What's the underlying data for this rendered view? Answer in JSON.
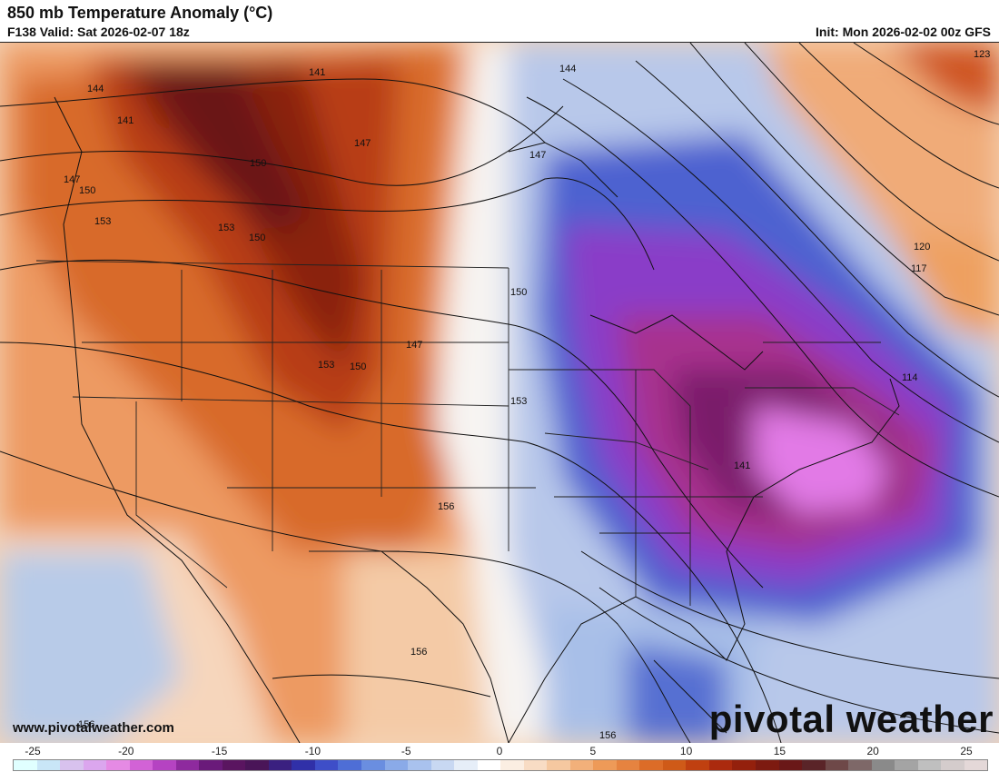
{
  "header": {
    "title": "850 mb Temperature Anomaly (°C)",
    "valid": "F138 Valid: Sat 2026-02-07 18z",
    "init": "Init: Mon 2026-02-02 00z GFS"
  },
  "footer": {
    "website": "www.pivotalweather.com",
    "logo": "pivotal weather"
  },
  "contour_labels": [
    "141",
    "144",
    "147",
    "150",
    "153",
    "156",
    "123",
    "120",
    "117",
    "114",
    "141",
    "144",
    "147",
    "150",
    "153",
    "156",
    "150",
    "153",
    "150",
    "147",
    "141",
    "147",
    "150",
    "153",
    "156",
    "156",
    "123"
  ],
  "colorbar": {
    "tick_labels": [
      "-25",
      "-20",
      "-15",
      "-10",
      "-5",
      "0",
      "5",
      "10",
      "15",
      "20",
      "25"
    ],
    "colors": [
      "#e0ffff",
      "#c9e6f7",
      "#d8c2ee",
      "#dba6ee",
      "#e58ae4",
      "#d262d6",
      "#b543c2",
      "#8e2a9e",
      "#6a1a7a",
      "#5a1560",
      "#4a1558",
      "#3a2080",
      "#3030a8",
      "#3e4ec8",
      "#4e6ed6",
      "#6a8ee0",
      "#8aaae8",
      "#a9c2ee",
      "#c8d8f2",
      "#e6eef8",
      "#ffffff",
      "#fbeee2",
      "#f8dcc4",
      "#f5c8a0",
      "#f2b07a",
      "#ee9a58",
      "#e68340",
      "#dc6c28",
      "#cf5a18",
      "#c04010",
      "#ab2a0e",
      "#94200c",
      "#7d1a10",
      "#6a1818",
      "#5a2428",
      "#6e4848",
      "#7e6868",
      "#8a8a8a",
      "#a4a4a4",
      "#bfbfbf",
      "#d4cccc",
      "#e4d8d8"
    ]
  }
}
